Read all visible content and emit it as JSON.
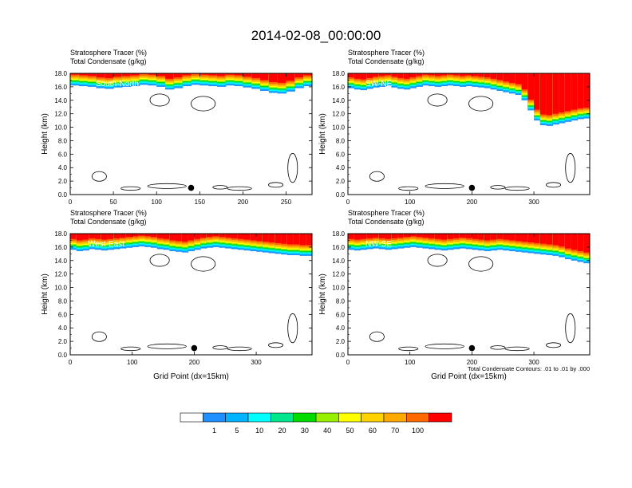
{
  "title": "2014-02-08_00:00:00",
  "colors": [
    "#ffffff",
    "#1e90ff",
    "#00b4ff",
    "#00ffff",
    "#00e68c",
    "#00dc00",
    "#96f000",
    "#ffff00",
    "#ffd200",
    "#ffaa00",
    "#ff6a00",
    "#ff0000"
  ],
  "contour_color": "#000000",
  "chart_data": [
    {
      "type": "heatmap",
      "label": "South-North",
      "label_line1": "Stratosphere Tracer   (%)",
      "label_line2": "Total Condensate   (g/kg)",
      "ylabel": "Height (km)",
      "xlabel": "",
      "xlim": [
        0,
        280
      ],
      "ylim": [
        0,
        18
      ],
      "xticks": [
        0,
        50,
        100,
        150,
        200,
        250
      ],
      "yticks": [
        0.0,
        2.0,
        4.0,
        6.0,
        8.0,
        10.0,
        12.0,
        14.0,
        16.0,
        18.0
      ],
      "marker_point": [
        140,
        1.0
      ],
      "tropopause_km": [
        16.2,
        16.1,
        16.0,
        15.8,
        15.7,
        15.9,
        16.0,
        16.1,
        16.3,
        16.2,
        16.0,
        15.6,
        15.8,
        16.1,
        16.3,
        16.2,
        16.1,
        16.0,
        16.2,
        16.1,
        15.9,
        15.7,
        15.4,
        15.1,
        15.0,
        15.3,
        15.8,
        16.1
      ]
    },
    {
      "type": "heatmap",
      "label": "SW-NE",
      "label_line1": "Stratosphere Tracer   (%)",
      "label_line2": "Total Condensate   (g/kg)",
      "ylabel": "Height (km)",
      "xlabel": "",
      "xlim": [
        0,
        390
      ],
      "ylim": [
        0,
        18
      ],
      "xticks": [
        0,
        100,
        200,
        300
      ],
      "yticks": [
        0.0,
        2.0,
        4.0,
        6.0,
        8.0,
        10.0,
        12.0,
        14.0,
        16.0,
        18.0
      ],
      "marker_point": [
        200,
        1.0
      ],
      "tropopause_km": [
        15.8,
        15.6,
        15.5,
        15.7,
        15.9,
        16.0,
        16.1,
        15.9,
        15.7,
        15.6,
        15.8,
        16.0,
        16.2,
        16.1,
        16.0,
        16.1,
        16.2,
        16.1,
        16.0,
        16.1,
        16.0,
        15.9,
        15.8,
        15.6,
        15.4,
        15.2,
        15.0,
        14.8,
        14.0,
        12.5,
        11.0,
        10.3,
        10.2,
        10.4,
        10.6,
        10.8,
        11.0,
        11.2,
        11.3
      ]
    },
    {
      "type": "heatmap",
      "label": "West-East",
      "label_line1": "Stratosphere Tracer   (%)",
      "label_line2": "Total Condensate   (g/kg)",
      "ylabel": "Height (km)",
      "xlabel": "Grid Point (dx=15km)",
      "xlim": [
        0,
        390
      ],
      "ylim": [
        0,
        18
      ],
      "xticks": [
        0,
        100,
        200,
        300
      ],
      "yticks": [
        0.0,
        2.0,
        4.0,
        6.0,
        8.0,
        10.0,
        12.0,
        14.0,
        16.0,
        18.0
      ],
      "marker_point": [
        200,
        1.0
      ],
      "tropopause_km": [
        15.6,
        15.4,
        15.5,
        15.7,
        15.6,
        15.5,
        15.6,
        15.7,
        15.8,
        15.9,
        16.0,
        16.1,
        16.0,
        15.9,
        15.7,
        15.6,
        15.4,
        15.3,
        15.2,
        15.4,
        15.6,
        15.8,
        15.9,
        16.0,
        15.9,
        15.8,
        15.7,
        15.6,
        15.5,
        15.4,
        15.3,
        15.2,
        15.1,
        15.0,
        14.9,
        14.8,
        14.8,
        14.7,
        14.7
      ]
    },
    {
      "type": "heatmap",
      "label": "NW-SE",
      "label_line1": "Stratosphere Tracer   (%)",
      "label_line2": "Total Condensate   (g/kg)",
      "ylabel": "Height (km)",
      "xlabel": "Grid Point (dx=15km)",
      "xlim": [
        0,
        390
      ],
      "ylim": [
        0,
        18
      ],
      "xticks": [
        0,
        100,
        200,
        300
      ],
      "yticks": [
        0.0,
        2.0,
        4.0,
        6.0,
        8.0,
        10.0,
        12.0,
        14.0,
        16.0,
        18.0
      ],
      "marker_point": [
        200,
        1.0
      ],
      "annotation": "Total Condensate Contours: .01 to .01 by .000",
      "tropopause_km": [
        15.6,
        15.5,
        15.6,
        15.7,
        15.8,
        15.7,
        15.6,
        15.7,
        15.8,
        15.9,
        16.0,
        15.9,
        15.8,
        15.7,
        15.6,
        15.5,
        15.6,
        15.7,
        15.8,
        15.7,
        15.6,
        15.5,
        15.4,
        15.5,
        15.6,
        15.5,
        15.4,
        15.3,
        15.2,
        15.1,
        15.0,
        14.9,
        14.8,
        14.7,
        14.5,
        14.2,
        14.0,
        13.8,
        13.6
      ]
    }
  ],
  "colorbar": {
    "labels": [
      "1",
      "5",
      "10",
      "20",
      "30",
      "40",
      "50",
      "60",
      "70",
      "100"
    ]
  }
}
